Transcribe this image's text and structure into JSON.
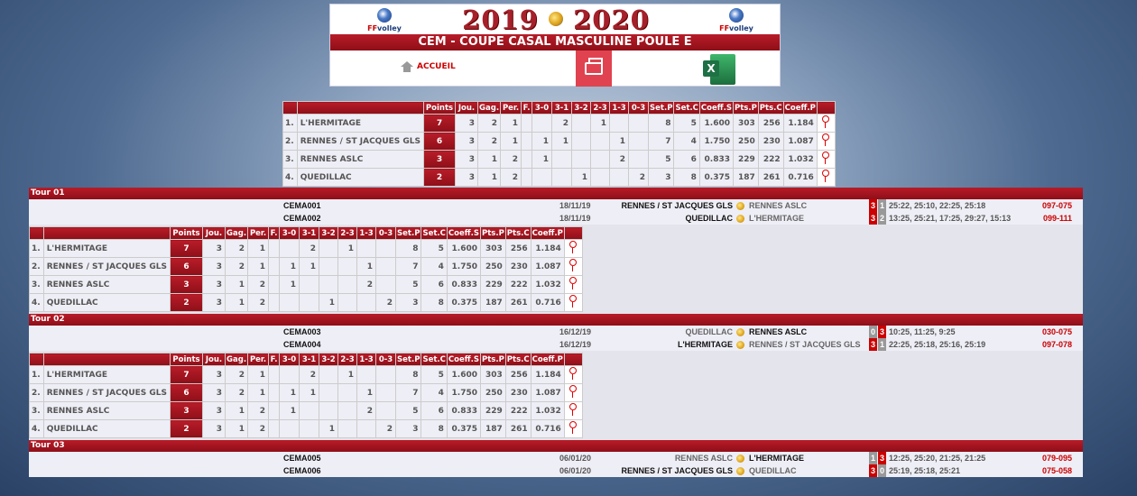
{
  "header": {
    "season_left": "2019",
    "season_right": "2020",
    "competition": "CEM - COUPE CASAL MASCULINE POULE E",
    "logo_text_ff": "FF",
    "logo_text_volley": "volley",
    "home_label": "ACCUEIL",
    "print_icon": "printer-icon",
    "excel_icon": "excel-icon",
    "excel_letter": "X"
  },
  "standings": {
    "headers": [
      "",
      "",
      "Points",
      "Jou.",
      "Gag.",
      "Per.",
      "F.",
      "3-0",
      "3-1",
      "3-2",
      "2-3",
      "1-3",
      "0-3",
      "Set.P",
      "Set.C",
      "Coeff.S",
      "Pts.P",
      "Pts.C",
      "Coeff.P",
      ""
    ],
    "rows": [
      [
        "1.",
        "L'HERMITAGE",
        "7",
        "3",
        "2",
        "1",
        "",
        "",
        "2",
        "",
        "1",
        "",
        "",
        "8",
        "5",
        "1.600",
        "303",
        "256",
        "1.184"
      ],
      [
        "2.",
        "RENNES / ST JACQUES GLS",
        "6",
        "3",
        "2",
        "1",
        "",
        "1",
        "1",
        "",
        "",
        "1",
        "",
        "7",
        "4",
        "1.750",
        "250",
        "230",
        "1.087"
      ],
      [
        "3.",
        "RENNES ASLC",
        "3",
        "3",
        "1",
        "2",
        "",
        "1",
        "",
        "",
        "",
        "2",
        "",
        "5",
        "6",
        "0.833",
        "229",
        "222",
        "1.032"
      ],
      [
        "4.",
        "QUEDILLAC",
        "2",
        "3",
        "1",
        "2",
        "",
        "",
        "",
        "1",
        "",
        "",
        "2",
        "3",
        "8",
        "0.375",
        "187",
        "261",
        "0.716"
      ]
    ]
  },
  "tours": [
    {
      "title": "Tour 01",
      "matches": [
        {
          "code": "CEMA001",
          "date": "18/11/19",
          "home": "RENNES / ST JACQUES GLS",
          "away": "RENNES ASLC",
          "home_sets": "3",
          "away_sets": "1",
          "winner": "home",
          "set_scores": "25:22, 25:10, 22:25, 25:18",
          "points": "097-075"
        },
        {
          "code": "CEMA002",
          "date": "18/11/19",
          "home": "QUEDILLAC",
          "away": "L'HERMITAGE",
          "home_sets": "3",
          "away_sets": "2",
          "winner": "home",
          "set_scores": "13:25, 25:21, 17:25, 29:27, 15:13",
          "points": "099-111"
        }
      ],
      "show_standings": true
    },
    {
      "title": "Tour 02",
      "matches": [
        {
          "code": "CEMA003",
          "date": "16/12/19",
          "home": "QUEDILLAC",
          "away": "RENNES ASLC",
          "home_sets": "0",
          "away_sets": "3",
          "winner": "away",
          "set_scores": "10:25, 11:25, 9:25",
          "points": "030-075"
        },
        {
          "code": "CEMA004",
          "date": "16/12/19",
          "home": "L'HERMITAGE",
          "away": "RENNES / ST JACQUES GLS",
          "home_sets": "3",
          "away_sets": "1",
          "winner": "home",
          "set_scores": "22:25, 25:18, 25:16, 25:19",
          "points": "097-078"
        }
      ],
      "show_standings": true
    },
    {
      "title": "Tour 03",
      "matches": [
        {
          "code": "CEMA005",
          "date": "06/01/20",
          "home": "RENNES ASLC",
          "away": "L'HERMITAGE",
          "home_sets": "1",
          "away_sets": "3",
          "winner": "away",
          "set_scores": "12:25, 25:20, 21:25, 21:25",
          "points": "079-095"
        },
        {
          "code": "CEMA006",
          "date": "06/01/20",
          "home": "RENNES / ST JACQUES GLS",
          "away": "QUEDILLAC",
          "home_sets": "3",
          "away_sets": "0",
          "winner": "home",
          "set_scores": "25:19, 25:18, 25:21",
          "points": "075-058"
        }
      ],
      "show_standings": false
    }
  ],
  "colors": {
    "accent": "#a5121c",
    "winner_box": "#cc0000",
    "loser_box": "#999999",
    "points_text": "#cc0000"
  }
}
